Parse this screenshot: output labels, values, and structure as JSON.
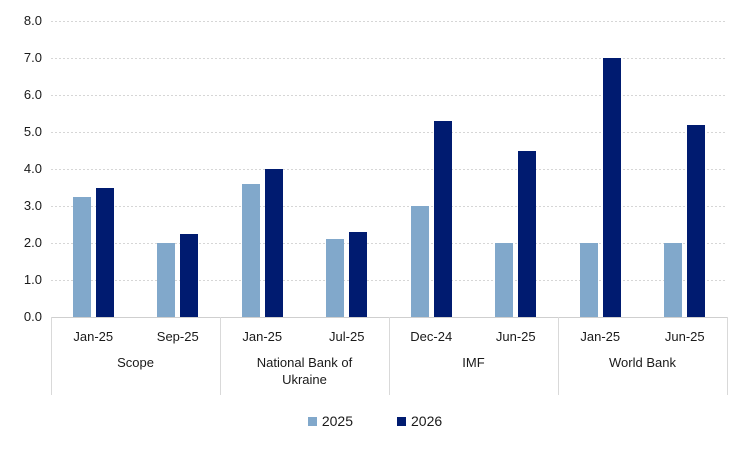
{
  "chart_data": {
    "type": "bar",
    "title": "",
    "xlabel": "",
    "ylabel": "",
    "ylim": [
      0,
      8
    ],
    "ytick_step": 1.0,
    "ytick_labels": [
      "0.0",
      "1.0",
      "2.0",
      "3.0",
      "4.0",
      "5.0",
      "6.0",
      "7.0",
      "8.0"
    ],
    "grid": true,
    "gridline_style": "dotted",
    "legend_position": "bottom",
    "categories": [
      "Jan-25",
      "Sep-25",
      "Jan-25",
      "Jul-25",
      "Dec-24",
      "Jun-25",
      "Jan-25",
      "Jun-25"
    ],
    "groups": [
      {
        "label": "Scope",
        "dates": [
          "Jan-25",
          "Sep-25"
        ]
      },
      {
        "label": "National Bank of Ukraine",
        "dates": [
          "Jan-25",
          "Jul-25"
        ]
      },
      {
        "label": "IMF",
        "dates": [
          "Dec-24",
          "Jun-25"
        ]
      },
      {
        "label": "World Bank",
        "dates": [
          "Jan-25",
          "Jun-25"
        ]
      }
    ],
    "series": [
      {
        "name": "2025",
        "color": "#81A8CB",
        "values": [
          3.25,
          2.0,
          3.6,
          2.1,
          3.0,
          2.0,
          2.0,
          2.0
        ]
      },
      {
        "name": "2026",
        "color": "#001B70",
        "values": [
          3.5,
          2.25,
          4.0,
          2.3,
          5.3,
          4.5,
          7.0,
          5.2
        ]
      }
    ]
  },
  "colors": {
    "series_2025": "#81A8CB",
    "series_2026": "#001B70",
    "gridline": "#d6d6d6",
    "axis_line": "#cfcfcf",
    "separator": "#d9d9d9",
    "text": "#1a1a1a",
    "background": "#ffffff"
  }
}
